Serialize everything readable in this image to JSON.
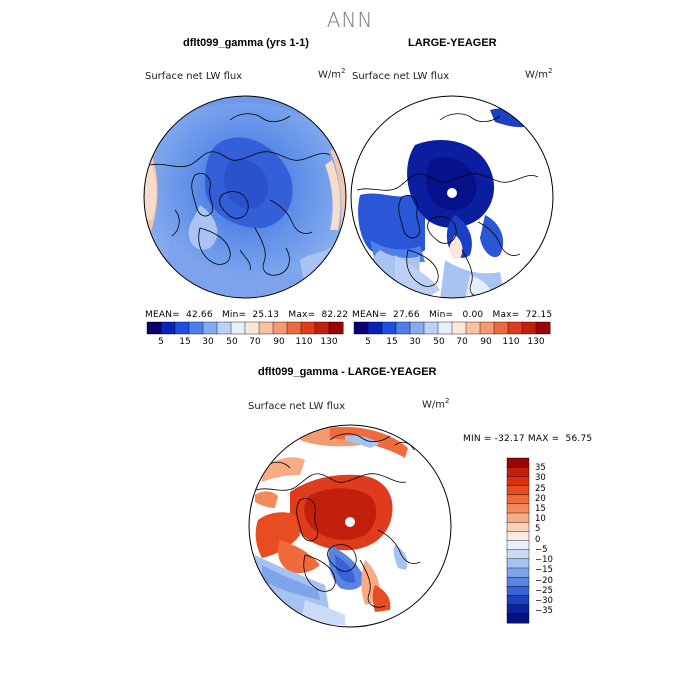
{
  "page": {
    "title": "ANN"
  },
  "chart_data": [
    {
      "type": "heatmap",
      "projection": "north polar stereographic",
      "title": "dflt099_gamma (yrs 1-1)",
      "variable": "Surface net LW flux",
      "units": "W/m",
      "units_exponent": "2",
      "stats": {
        "mean_label": "MEAN=",
        "mean": "42.66",
        "min_label": "Min=",
        "min": "25.13",
        "max_label": "Max=",
        "max": "82.22"
      },
      "colorbar": {
        "tick_labels": [
          "5",
          "15",
          "30",
          "50",
          "70",
          "90",
          "110",
          "130"
        ],
        "colors": [
          "#08006e",
          "#0a22b8",
          "#1f4fe0",
          "#4f7fe8",
          "#86aaf0",
          "#bcd0f6",
          "#e6eefb",
          "#fbe8dc",
          "#f8c1a2",
          "#f39a70",
          "#ec6a40",
          "#de3c1c",
          "#c2200c",
          "#980606"
        ]
      }
    },
    {
      "type": "heatmap",
      "projection": "north polar stereographic",
      "title": "LARGE-YEAGER",
      "variable": "Surface net LW flux",
      "units": "W/m",
      "units_exponent": "2",
      "stats": {
        "mean_label": "MEAN=",
        "mean": "27.66",
        "min_label": "Min=",
        "min": "0.00",
        "max_label": "Max=",
        "max": "72.15"
      },
      "colorbar": {
        "tick_labels": [
          "5",
          "15",
          "30",
          "50",
          "70",
          "90",
          "110",
          "130"
        ],
        "colors": [
          "#08006e",
          "#0a22b8",
          "#1f4fe0",
          "#4f7fe8",
          "#86aaf0",
          "#bcd0f6",
          "#e6eefb",
          "#fbe8dc",
          "#f8c1a2",
          "#f39a70",
          "#ec6a40",
          "#de3c1c",
          "#c2200c",
          "#980606"
        ]
      }
    },
    {
      "type": "heatmap",
      "projection": "north polar stereographic",
      "title": "dflt099_gamma - LARGE-YEAGER",
      "variable": "Surface net LW flux",
      "units": "W/m",
      "units_exponent": "2",
      "stats": {
        "min_label": "MIN =",
        "min": "-32.17",
        "max_label": "MAX =",
        "max": "56.75"
      },
      "colorbar": {
        "orientation": "vertical",
        "tick_labels": [
          "35",
          "30",
          "25",
          "20",
          "15",
          "10",
          "5",
          "0",
          "−5",
          "−10",
          "−15",
          "−20",
          "−25",
          "−30",
          "−35"
        ],
        "colors": [
          "#980606",
          "#c2200c",
          "#d8300f",
          "#e84c22",
          "#f06a3c",
          "#f48a5c",
          "#f8ab84",
          "#fbd0b6",
          "#fcebe0",
          "#e8f0fb",
          "#c9dbf6",
          "#a6c2f0",
          "#7fa4ea",
          "#5a84e2",
          "#3a63d8",
          "#1c40c4",
          "#0b22a0",
          "#070f7c"
        ]
      }
    }
  ]
}
